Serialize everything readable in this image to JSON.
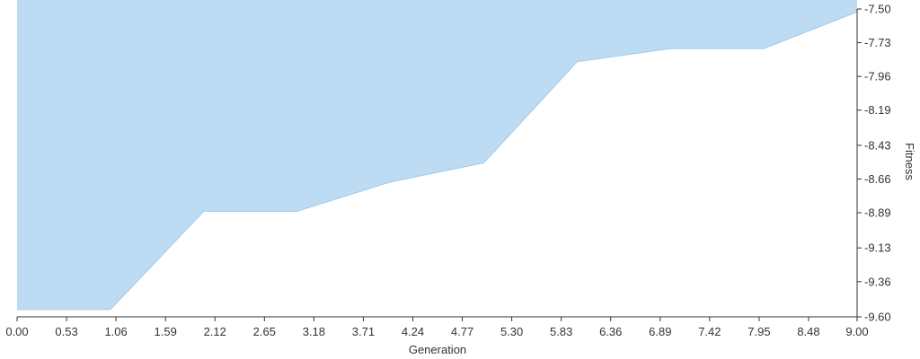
{
  "chart_data": {
    "type": "area",
    "xlabel": "Generation",
    "ylabel": "Fitness",
    "xlim": [
      0,
      9
    ],
    "ylim": [
      -9.6,
      -7.5
    ],
    "x_ticks": [
      "0.00",
      "0.53",
      "1.06",
      "1.59",
      "2.12",
      "2.65",
      "3.18",
      "3.71",
      "4.24",
      "4.77",
      "5.30",
      "5.83",
      "6.36",
      "6.89",
      "7.42",
      "7.95",
      "8.48",
      "9.00"
    ],
    "y_ticks": [
      "-7.50",
      "-7.73",
      "-7.96",
      "-8.19",
      "-8.43",
      "-8.66",
      "-8.89",
      "-9.13",
      "-9.36",
      "-9.60"
    ],
    "grid": false,
    "y_axis_side": "right",
    "series": [
      {
        "x": [
          0,
          1,
          2,
          3,
          4,
          5,
          6,
          7,
          8,
          9
        ],
        "values": [
          -9.55,
          -9.55,
          -8.88,
          -8.88,
          -8.68,
          -8.55,
          -7.86,
          -7.77,
          -7.77,
          -7.52
        ],
        "fill_to": "top",
        "color": "#bddcf3"
      }
    ]
  }
}
